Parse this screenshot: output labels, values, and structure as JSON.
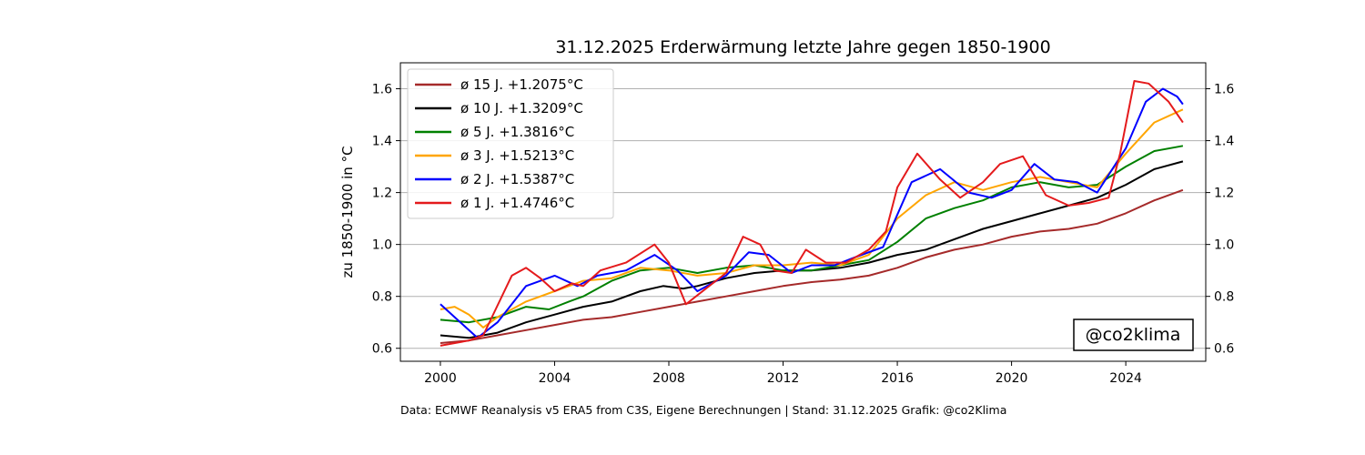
{
  "chart_data": {
    "type": "line",
    "title": "31.12.2025 Erderwärmung letzte Jahre gegen 1850-1900",
    "ylabel": "zu 1850-1900 in °C",
    "xlabel": "",
    "xlim": [
      1998.6,
      2026.8
    ],
    "ylim": [
      0.55,
      1.7
    ],
    "x_ticks": [
      "2000",
      "2004",
      "2008",
      "2012",
      "2016",
      "2020",
      "2024"
    ],
    "y_ticks": [
      "0.6",
      "0.8",
      "1.0",
      "1.2",
      "1.4",
      "1.6"
    ],
    "grid": "horizontal",
    "legend_position": "top-left",
    "watermark": "@co2klima",
    "source_note": "Data: ECMWF Reanalysis v5 ERA5 from C3S, Eigene Berechnungen | Stand: 31.12.2025 Grafik: @co2Klima",
    "series": [
      {
        "name": "ø 15 J. +1.2075°C",
        "color": "#a52a2a",
        "points": [
          [
            2000,
            0.62
          ],
          [
            2001,
            0.63
          ],
          [
            2002,
            0.65
          ],
          [
            2003,
            0.67
          ],
          [
            2004,
            0.69
          ],
          [
            2005,
            0.71
          ],
          [
            2006,
            0.72
          ],
          [
            2007,
            0.74
          ],
          [
            2008,
            0.76
          ],
          [
            2009,
            0.78
          ],
          [
            2010,
            0.8
          ],
          [
            2011,
            0.82
          ],
          [
            2012,
            0.84
          ],
          [
            2013,
            0.855
          ],
          [
            2014,
            0.865
          ],
          [
            2015,
            0.88
          ],
          [
            2016,
            0.91
          ],
          [
            2017,
            0.95
          ],
          [
            2018,
            0.98
          ],
          [
            2019,
            1.0
          ],
          [
            2020,
            1.03
          ],
          [
            2021,
            1.05
          ],
          [
            2022,
            1.06
          ],
          [
            2023,
            1.08
          ],
          [
            2024,
            1.12
          ],
          [
            2025,
            1.17
          ],
          [
            2026,
            1.21
          ]
        ]
      },
      {
        "name": "ø 10 J. +1.3209°C",
        "color": "#000000",
        "points": [
          [
            2000,
            0.65
          ],
          [
            2001,
            0.64
          ],
          [
            2002,
            0.66
          ],
          [
            2003,
            0.7
          ],
          [
            2004,
            0.73
          ],
          [
            2005,
            0.76
          ],
          [
            2006,
            0.78
          ],
          [
            2007,
            0.82
          ],
          [
            2007.8,
            0.84
          ],
          [
            2008.5,
            0.83
          ],
          [
            2009,
            0.84
          ],
          [
            2010,
            0.87
          ],
          [
            2011,
            0.89
          ],
          [
            2012,
            0.9
          ],
          [
            2013,
            0.9
          ],
          [
            2014,
            0.91
          ],
          [
            2015,
            0.93
          ],
          [
            2016,
            0.96
          ],
          [
            2017,
            0.98
          ],
          [
            2018,
            1.02
          ],
          [
            2019,
            1.06
          ],
          [
            2020,
            1.09
          ],
          [
            2021,
            1.12
          ],
          [
            2022,
            1.15
          ],
          [
            2023,
            1.18
          ],
          [
            2024,
            1.23
          ],
          [
            2025,
            1.29
          ],
          [
            2026,
            1.32
          ]
        ]
      },
      {
        "name": "ø 5 J. +1.3816°C",
        "color": "#008000",
        "points": [
          [
            2000,
            0.71
          ],
          [
            2001,
            0.7
          ],
          [
            2002,
            0.72
          ],
          [
            2003,
            0.76
          ],
          [
            2003.8,
            0.75
          ],
          [
            2004.5,
            0.78
          ],
          [
            2005,
            0.8
          ],
          [
            2006,
            0.86
          ],
          [
            2007,
            0.9
          ],
          [
            2008,
            0.91
          ],
          [
            2009,
            0.89
          ],
          [
            2010,
            0.91
          ],
          [
            2011,
            0.92
          ],
          [
            2012,
            0.9
          ],
          [
            2013,
            0.9
          ],
          [
            2014,
            0.92
          ],
          [
            2015,
            0.94
          ],
          [
            2016,
            1.01
          ],
          [
            2017,
            1.1
          ],
          [
            2018,
            1.14
          ],
          [
            2019,
            1.17
          ],
          [
            2020,
            1.22
          ],
          [
            2021,
            1.24
          ],
          [
            2022,
            1.22
          ],
          [
            2023,
            1.23
          ],
          [
            2024,
            1.3
          ],
          [
            2025,
            1.36
          ],
          [
            2026,
            1.38
          ]
        ]
      },
      {
        "name": "ø 3 J. +1.5213°C",
        "color": "#ffa500",
        "points": [
          [
            2000,
            0.75
          ],
          [
            2000.5,
            0.76
          ],
          [
            2001,
            0.73
          ],
          [
            2001.5,
            0.68
          ],
          [
            2002,
            0.72
          ],
          [
            2003,
            0.78
          ],
          [
            2004,
            0.82
          ],
          [
            2005,
            0.86
          ],
          [
            2006,
            0.87
          ],
          [
            2007,
            0.91
          ],
          [
            2008,
            0.9
          ],
          [
            2009,
            0.88
          ],
          [
            2010,
            0.89
          ],
          [
            2011,
            0.92
          ],
          [
            2012,
            0.92
          ],
          [
            2013,
            0.93
          ],
          [
            2014,
            0.92
          ],
          [
            2015,
            0.96
          ],
          [
            2016,
            1.1
          ],
          [
            2017,
            1.19
          ],
          [
            2018,
            1.24
          ],
          [
            2019,
            1.21
          ],
          [
            2020,
            1.24
          ],
          [
            2021,
            1.26
          ],
          [
            2022,
            1.24
          ],
          [
            2023,
            1.22
          ],
          [
            2024,
            1.35
          ],
          [
            2025,
            1.47
          ],
          [
            2026,
            1.52
          ]
        ]
      },
      {
        "name": "ø 2 J. +1.5387°C",
        "color": "#0000ff",
        "points": [
          [
            2000,
            0.77
          ],
          [
            2000.7,
            0.7
          ],
          [
            2001.3,
            0.64
          ],
          [
            2002,
            0.7
          ],
          [
            2003,
            0.84
          ],
          [
            2004,
            0.88
          ],
          [
            2004.8,
            0.84
          ],
          [
            2005.5,
            0.88
          ],
          [
            2006.5,
            0.9
          ],
          [
            2007.5,
            0.96
          ],
          [
            2008.3,
            0.9
          ],
          [
            2009,
            0.82
          ],
          [
            2010,
            0.88
          ],
          [
            2010.8,
            0.97
          ],
          [
            2011.5,
            0.96
          ],
          [
            2012.3,
            0.89
          ],
          [
            2013,
            0.92
          ],
          [
            2013.8,
            0.92
          ],
          [
            2014.5,
            0.95
          ],
          [
            2015.5,
            0.99
          ],
          [
            2016.5,
            1.24
          ],
          [
            2017.5,
            1.29
          ],
          [
            2018.5,
            1.2
          ],
          [
            2019.3,
            1.18
          ],
          [
            2020,
            1.21
          ],
          [
            2020.8,
            1.31
          ],
          [
            2021.5,
            1.25
          ],
          [
            2022.3,
            1.24
          ],
          [
            2023,
            1.2
          ],
          [
            2024,
            1.37
          ],
          [
            2024.7,
            1.55
          ],
          [
            2025.3,
            1.6
          ],
          [
            2025.8,
            1.57
          ],
          [
            2026,
            1.54
          ]
        ]
      },
      {
        "name": "ø 1 J. +1.4746°C",
        "color": "#e41a1c",
        "points": [
          [
            2000,
            0.61
          ],
          [
            2001,
            0.63
          ],
          [
            2001.5,
            0.65
          ],
          [
            2002.5,
            0.88
          ],
          [
            2003,
            0.91
          ],
          [
            2003.5,
            0.87
          ],
          [
            2004,
            0.82
          ],
          [
            2004.6,
            0.85
          ],
          [
            2005,
            0.84
          ],
          [
            2005.6,
            0.9
          ],
          [
            2006.5,
            0.93
          ],
          [
            2007.5,
            1.0
          ],
          [
            2008,
            0.93
          ],
          [
            2008.6,
            0.77
          ],
          [
            2009.3,
            0.83
          ],
          [
            2010,
            0.89
          ],
          [
            2010.6,
            1.03
          ],
          [
            2011.2,
            1.0
          ],
          [
            2011.7,
            0.9
          ],
          [
            2012.3,
            0.89
          ],
          [
            2012.8,
            0.98
          ],
          [
            2013.5,
            0.93
          ],
          [
            2014.2,
            0.93
          ],
          [
            2015,
            0.98
          ],
          [
            2015.6,
            1.05
          ],
          [
            2016,
            1.22
          ],
          [
            2016.7,
            1.35
          ],
          [
            2017.5,
            1.25
          ],
          [
            2018.2,
            1.18
          ],
          [
            2019,
            1.24
          ],
          [
            2019.6,
            1.31
          ],
          [
            2020.4,
            1.34
          ],
          [
            2021.2,
            1.19
          ],
          [
            2022,
            1.15
          ],
          [
            2022.7,
            1.16
          ],
          [
            2023.4,
            1.18
          ],
          [
            2023.8,
            1.35
          ],
          [
            2024.3,
            1.63
          ],
          [
            2024.8,
            1.62
          ],
          [
            2025.5,
            1.55
          ],
          [
            2026,
            1.47
          ]
        ]
      }
    ]
  }
}
